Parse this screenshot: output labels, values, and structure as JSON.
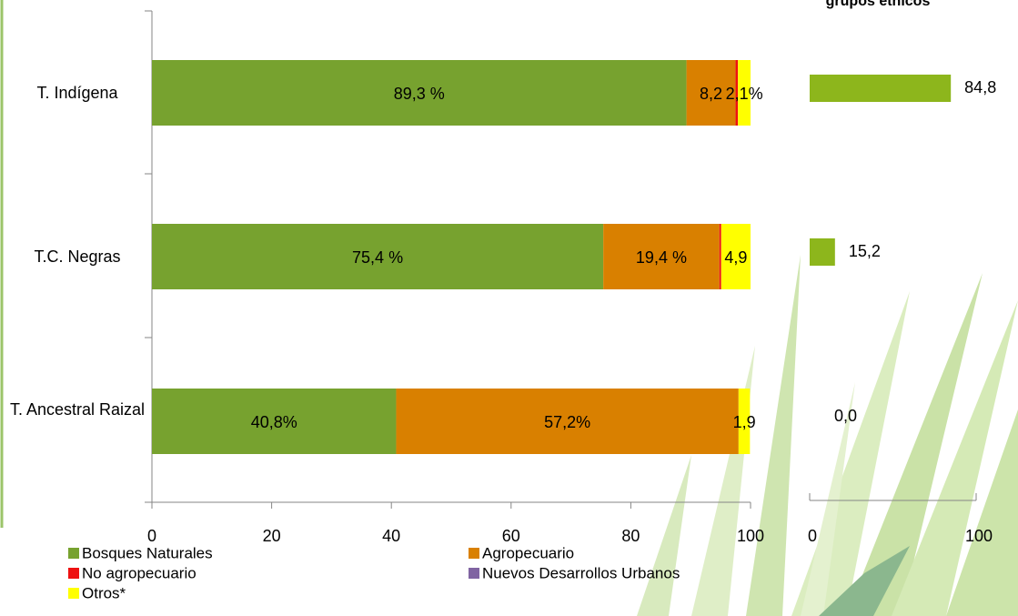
{
  "chart_data": [
    {
      "type": "stacked-bar",
      "categories": [
        "T. Indígena",
        "T.C. Negras",
        "T. Ancestral Raizal"
      ],
      "series": [
        {
          "name": "Bosques Naturales",
          "color": "#77a22f",
          "values": [
            89.3,
            75.4,
            40.8
          ],
          "value_labels": [
            "89,3 %",
            "75,4 %",
            "40,8%"
          ]
        },
        {
          "name": "Agropecuario",
          "color": "#d98000",
          "values": [
            8.2,
            19.4,
            57.2
          ],
          "value_labels": [
            "8,2",
            "19,4 %",
            "57,2%"
          ]
        },
        {
          "name": "No agropecuario",
          "color": "#ee1111",
          "values": [
            0.4,
            0.3,
            0
          ]
        },
        {
          "name": "Nuevos Desarrollos Urbanos",
          "color": "#8064a2",
          "values": [
            0,
            0,
            0
          ]
        },
        {
          "name": "Otros*",
          "color": "#ffff00",
          "values": [
            2.1,
            4.9,
            1.9
          ],
          "value_labels": [
            "2,1%",
            "4,9",
            "1,9"
          ]
        }
      ],
      "xlim": [
        0,
        100
      ],
      "xticks": [
        0,
        20,
        40,
        60,
        80,
        100
      ]
    },
    {
      "type": "bar",
      "title": "grupos étnicos",
      "color": "#8db61c",
      "values": [
        84.8,
        15.2,
        0.0
      ],
      "value_labels": [
        "84,8",
        "15,2",
        "0,0"
      ],
      "xlim": [
        0,
        100
      ],
      "xticks": [
        0,
        100
      ]
    }
  ]
}
